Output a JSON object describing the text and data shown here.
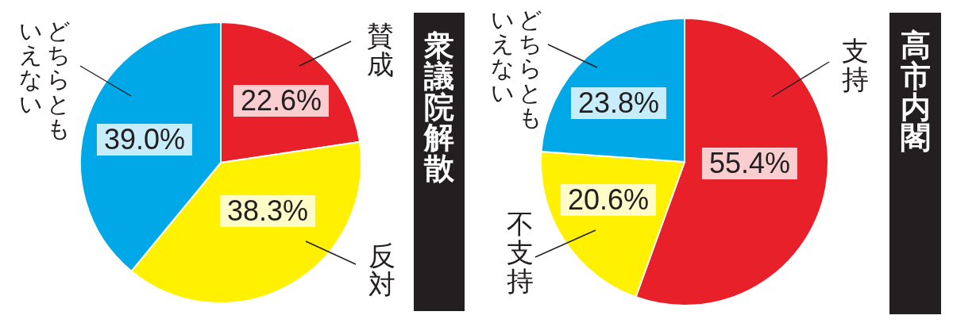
{
  "chart_data": [
    {
      "type": "pie",
      "title": "衆議院解散",
      "categories": [
        "賛成",
        "反対",
        "どちらともいえない"
      ],
      "values": [
        22.6,
        38.3,
        39.0
      ],
      "colors": [
        "#e8202a",
        "#fff100",
        "#00a8e8"
      ],
      "value_labels": [
        "22.6%",
        "38.3%",
        "39.0%"
      ]
    },
    {
      "type": "pie",
      "title": "高市内閣",
      "categories": [
        "支持",
        "不支持",
        "どちらともいえない"
      ],
      "values": [
        55.4,
        20.6,
        23.8
      ],
      "colors": [
        "#e8202a",
        "#fff100",
        "#00a8e8"
      ],
      "value_labels": [
        "55.4%",
        "20.6%",
        "23.8%"
      ]
    }
  ]
}
